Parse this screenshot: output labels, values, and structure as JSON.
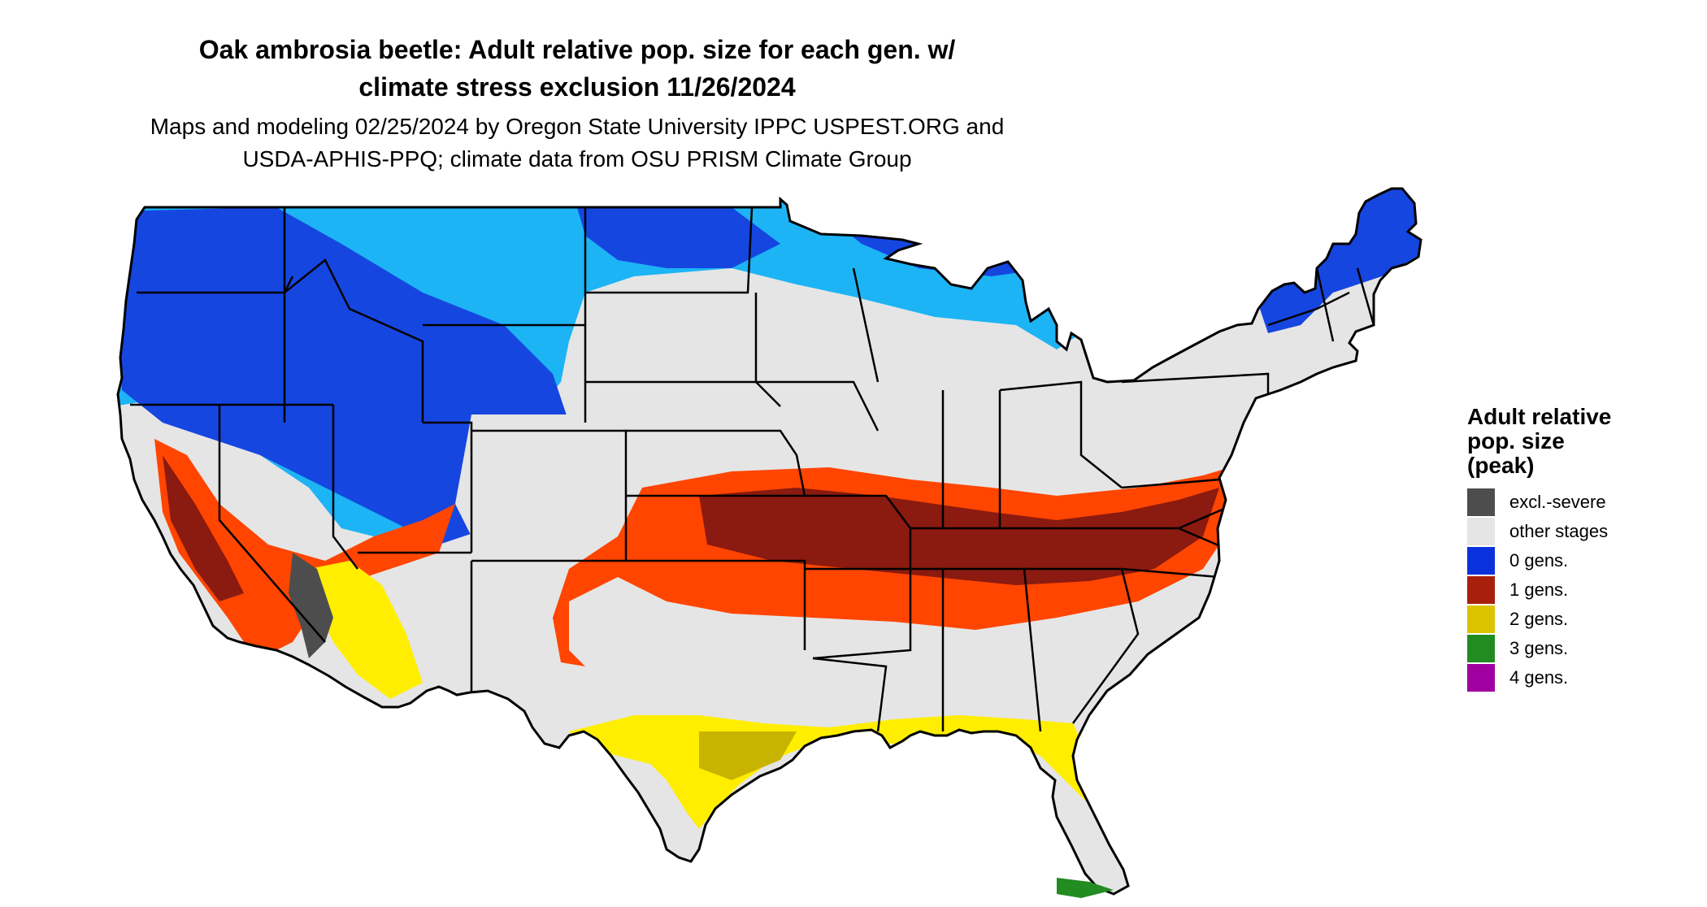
{
  "title": {
    "line1": "Oak ambrosia beetle: Adult relative pop. size for each gen. w/",
    "line2": "climate stress exclusion 11/26/2024"
  },
  "subtitle": {
    "line1": "Maps and modeling 02/25/2024 by Oregon State University IPPC USPEST.ORG and",
    "line2": "USDA-APHIS-PPQ; climate data from OSU PRISM Climate Group"
  },
  "legend": {
    "title_lines": [
      "Adult relative",
      "pop. size",
      "(peak)"
    ],
    "items": [
      {
        "label": "excl.-severe",
        "color": "#4d4d4d"
      },
      {
        "label": "other stages",
        "color": "#e5e5e5"
      },
      {
        "label": "0 gens.",
        "color": "#0a32dc"
      },
      {
        "label": "1 gens.",
        "color": "#a8200c"
      },
      {
        "label": "2 gens.",
        "color": "#dcc300"
      },
      {
        "label": "3 gens.",
        "color": "#228b22"
      },
      {
        "label": "4 gens.",
        "color": "#a000a0"
      }
    ]
  },
  "map_colors": {
    "land": "#e5e5e5",
    "zero_gen_dark": "#1646e0",
    "zero_gen_light": "#1cb4f5",
    "one_gen_dark": "#8b1a10",
    "one_gen_bright": "#ff4500",
    "two_gen": "#ffee00",
    "two_gen_dark": "#c8b400",
    "three_gen": "#228b22",
    "excluded": "#4d4d4d",
    "borders": "#000000"
  }
}
